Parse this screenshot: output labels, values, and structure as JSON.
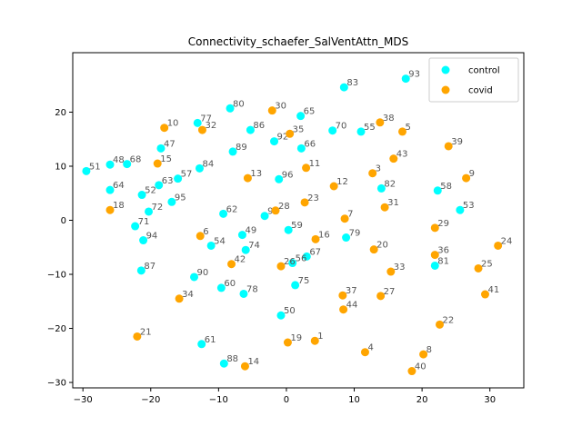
{
  "chart_data": {
    "type": "scatter",
    "title": "Connectivity_schaefer_SalVentAttn_MDS",
    "xlabel": "",
    "ylabel": "",
    "xlim": [
      -31.5,
      35
    ],
    "ylim": [
      -31,
      31
    ],
    "xticks": [
      -30,
      -20,
      -10,
      0,
      10,
      20,
      30
    ],
    "yticks": [
      -30,
      -20,
      -10,
      0,
      10,
      20
    ],
    "grid": false,
    "legend_position": "top-right",
    "series": [
      {
        "name": "control",
        "color": "#00ffff",
        "points": [
          {
            "label": "93",
            "x": 17.6,
            "y": 26.2
          },
          {
            "label": "83",
            "x": 8.5,
            "y": 24.6
          },
          {
            "label": "80",
            "x": -8.3,
            "y": 20.7
          },
          {
            "label": "65",
            "x": 2.1,
            "y": 19.3
          },
          {
            "label": "77",
            "x": -13.1,
            "y": 18.0
          },
          {
            "label": "86",
            "x": -5.3,
            "y": 16.7
          },
          {
            "label": "70",
            "x": 6.8,
            "y": 16.6
          },
          {
            "label": "55",
            "x": 11.0,
            "y": 16.4
          },
          {
            "label": "92",
            "x": -1.8,
            "y": 14.6
          },
          {
            "label": "47",
            "x": -18.5,
            "y": 13.3
          },
          {
            "label": "66",
            "x": 2.2,
            "y": 13.3
          },
          {
            "label": "89",
            "x": -7.9,
            "y": 12.7
          },
          {
            "label": "68",
            "x": -23.5,
            "y": 10.4
          },
          {
            "label": "48",
            "x": -26.0,
            "y": 10.3
          },
          {
            "label": "84",
            "x": -12.8,
            "y": 9.6
          },
          {
            "label": "51",
            "x": -29.5,
            "y": 9.1
          },
          {
            "label": "57",
            "x": -16.0,
            "y": 7.7
          },
          {
            "label": "96",
            "x": -1.1,
            "y": 7.6
          },
          {
            "label": "63",
            "x": -18.8,
            "y": 6.5
          },
          {
            "label": "82",
            "x": 14.0,
            "y": 5.9
          },
          {
            "label": "64",
            "x": -26.0,
            "y": 5.6
          },
          {
            "label": "58",
            "x": 22.3,
            "y": 5.5
          },
          {
            "label": "52",
            "x": -21.3,
            "y": 4.7
          },
          {
            "label": "95",
            "x": -16.9,
            "y": 3.4
          },
          {
            "label": "53",
            "x": 25.6,
            "y": 1.9
          },
          {
            "label": "72",
            "x": -20.3,
            "y": 1.6
          },
          {
            "label": "62",
            "x": -9.3,
            "y": 1.2
          },
          {
            "label": "91",
            "x": -3.2,
            "y": 0.8
          },
          {
            "label": "71",
            "x": -22.3,
            "y": -1.1
          },
          {
            "label": "59",
            "x": 0.3,
            "y": -1.8
          },
          {
            "label": "49",
            "x": -6.5,
            "y": -2.7
          },
          {
            "label": "79",
            "x": 8.8,
            "y": -3.2
          },
          {
            "label": "94",
            "x": -21.1,
            "y": -3.7
          },
          {
            "label": "54",
            "x": -11.1,
            "y": -4.7
          },
          {
            "label": "74",
            "x": -6.0,
            "y": -5.5
          },
          {
            "label": "67",
            "x": 3.0,
            "y": -6.7
          },
          {
            "label": "56",
            "x": 0.9,
            "y": -7.9
          },
          {
            "label": "81",
            "x": 21.9,
            "y": -8.4
          },
          {
            "label": "87",
            "x": -21.4,
            "y": -9.3
          },
          {
            "label": "90",
            "x": -13.6,
            "y": -10.5
          },
          {
            "label": "75",
            "x": 1.3,
            "y": -12.0
          },
          {
            "label": "60",
            "x": -9.6,
            "y": -12.5
          },
          {
            "label": "78",
            "x": -6.3,
            "y": -13.6
          },
          {
            "label": "50",
            "x": -0.8,
            "y": -17.6
          },
          {
            "label": "61",
            "x": -12.5,
            "y": -22.9
          },
          {
            "label": "88",
            "x": -9.2,
            "y": -26.5
          }
        ]
      },
      {
        "name": "covid",
        "color": "#ffa500",
        "points": [
          {
            "label": "30",
            "x": -2.1,
            "y": 20.3
          },
          {
            "label": "38",
            "x": 13.8,
            "y": 18.1
          },
          {
            "label": "10",
            "x": -18.0,
            "y": 17.1
          },
          {
            "label": "32",
            "x": -12.4,
            "y": 16.7
          },
          {
            "label": "35",
            "x": 0.5,
            "y": 16.0
          },
          {
            "label": "5",
            "x": 17.1,
            "y": 16.4
          },
          {
            "label": "39",
            "x": 23.9,
            "y": 13.7
          },
          {
            "label": "43",
            "x": 15.8,
            "y": 11.4
          },
          {
            "label": "15",
            "x": -19.0,
            "y": 10.5
          },
          {
            "label": "11",
            "x": 2.9,
            "y": 9.7
          },
          {
            "label": "3",
            "x": 12.7,
            "y": 8.7
          },
          {
            "label": "13",
            "x": -5.7,
            "y": 7.8
          },
          {
            "label": "9",
            "x": 26.5,
            "y": 7.8
          },
          {
            "label": "12",
            "x": 7.0,
            "y": 6.3
          },
          {
            "label": "23",
            "x": 2.7,
            "y": 3.3
          },
          {
            "label": "31",
            "x": 14.5,
            "y": 2.4
          },
          {
            "label": "28",
            "x": -1.6,
            "y": 1.8
          },
          {
            "label": "18",
            "x": -26.0,
            "y": 1.9
          },
          {
            "label": "7",
            "x": 8.6,
            "y": 0.3
          },
          {
            "label": "29",
            "x": 21.9,
            "y": -1.4
          },
          {
            "label": "6",
            "x": -12.7,
            "y": -2.9
          },
          {
            "label": "16",
            "x": 4.3,
            "y": -3.5
          },
          {
            "label": "24",
            "x": 31.2,
            "y": -4.7
          },
          {
            "label": "20",
            "x": 12.9,
            "y": -5.4
          },
          {
            "label": "36",
            "x": 21.9,
            "y": -6.4
          },
          {
            "label": "42",
            "x": -8.1,
            "y": -8.1
          },
          {
            "label": "26",
            "x": -0.8,
            "y": -8.5
          },
          {
            "label": "25",
            "x": 28.3,
            "y": -8.9
          },
          {
            "label": "33",
            "x": 15.4,
            "y": -9.5
          },
          {
            "label": "41",
            "x": 29.3,
            "y": -13.7
          },
          {
            "label": "34",
            "x": -15.8,
            "y": -14.5
          },
          {
            "label": "37",
            "x": 8.3,
            "y": -13.9
          },
          {
            "label": "27",
            "x": 13.9,
            "y": -14.0
          },
          {
            "label": "44",
            "x": 8.4,
            "y": -16.5
          },
          {
            "label": "22",
            "x": 22.6,
            "y": -19.3
          },
          {
            "label": "21",
            "x": -22.0,
            "y": -21.5
          },
          {
            "label": "1",
            "x": 4.2,
            "y": -22.3
          },
          {
            "label": "19",
            "x": 0.2,
            "y": -22.6
          },
          {
            "label": "4",
            "x": 11.6,
            "y": -24.4
          },
          {
            "label": "8",
            "x": 20.2,
            "y": -24.8
          },
          {
            "label": "14",
            "x": -6.1,
            "y": -27.0
          },
          {
            "label": "40",
            "x": 18.5,
            "y": -27.9
          }
        ]
      }
    ]
  }
}
